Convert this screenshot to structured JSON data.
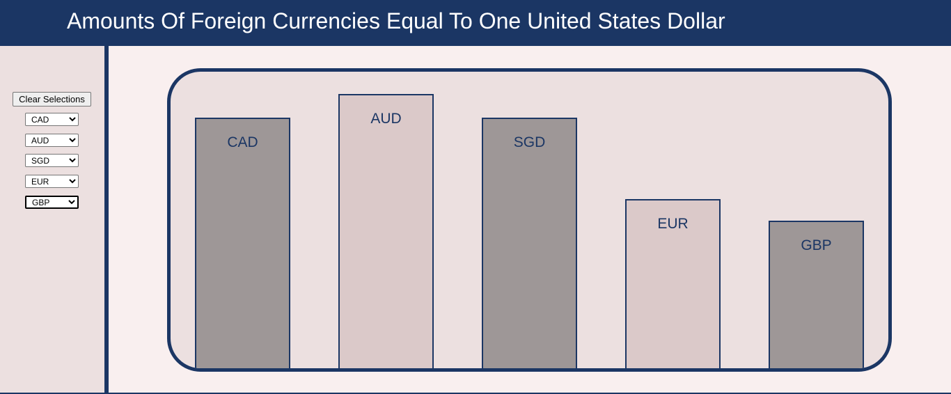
{
  "header": {
    "title": "Amounts Of Foreign Currencies Equal To One United States Dollar"
  },
  "sidebar": {
    "clear_label": "Clear Selections",
    "selects": [
      {
        "value": "CAD"
      },
      {
        "value": "AUD"
      },
      {
        "value": "SGD"
      },
      {
        "value": "EUR"
      },
      {
        "value": "GBP"
      }
    ]
  },
  "colors": {
    "header_bg": "#1b3664",
    "bar_dark": "#9e9797",
    "bar_light": "#dbc9c9",
    "chart_bg": "#ece0e0",
    "page_bg": "#f9efef"
  },
  "chart_data": {
    "type": "bar",
    "categories": [
      "CAD",
      "AUD",
      "SGD",
      "EUR",
      "GBP"
    ],
    "values": [
      1.36,
      1.49,
      1.36,
      0.92,
      0.8
    ],
    "ylim": [
      0,
      1.61
    ]
  }
}
